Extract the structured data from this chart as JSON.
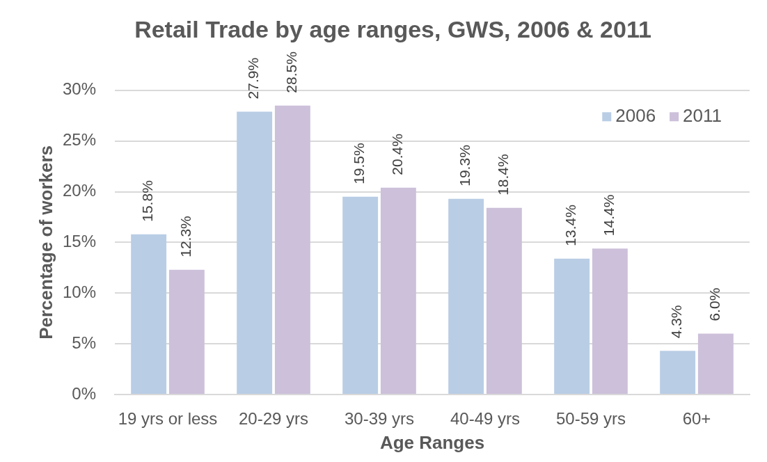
{
  "chart_data": {
    "type": "bar",
    "title": "Retail Trade by age ranges, GWS, 2006 & 2011",
    "xlabel": "Age Ranges",
    "ylabel": "Percentage of workers",
    "categories": [
      "19 yrs or less",
      "20-29 yrs",
      "30-39 yrs",
      "40-49 yrs",
      "50-59 yrs",
      "60+"
    ],
    "series": [
      {
        "name": "2006",
        "color": "#b9cde5",
        "values": [
          15.8,
          27.9,
          19.5,
          19.3,
          13.4,
          4.3
        ],
        "value_labels": [
          "15.8%",
          "27.9%",
          "19.5%",
          "19.3%",
          "13.4%",
          "4.3%"
        ]
      },
      {
        "name": "2011",
        "color": "#ccc0da",
        "values": [
          12.3,
          28.5,
          20.4,
          18.4,
          14.4,
          6.0
        ],
        "value_labels": [
          "12.3%",
          "28.5%",
          "20.4%",
          "18.4%",
          "14.4%",
          "6.0%"
        ]
      }
    ],
    "ylim": [
      0,
      30
    ],
    "yticks": [
      {
        "value": 0,
        "label": "0%"
      },
      {
        "value": 5,
        "label": "5%"
      },
      {
        "value": 10,
        "label": "10%"
      },
      {
        "value": 15,
        "label": "15%"
      },
      {
        "value": 20,
        "label": "20%"
      },
      {
        "value": 25,
        "label": "25%"
      },
      {
        "value": 30,
        "label": "30%"
      }
    ],
    "grid": "y",
    "legend": "top right"
  }
}
